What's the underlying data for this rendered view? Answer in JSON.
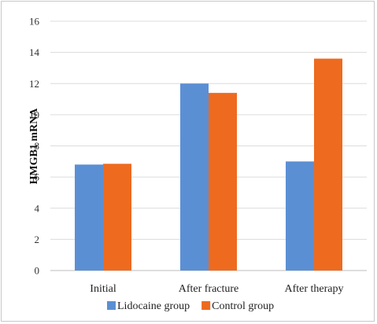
{
  "chart_data": {
    "type": "bar",
    "title": "",
    "xlabel": "",
    "ylabel": "HMGB1 mRNA",
    "ylim": [
      0,
      16
    ],
    "yticks": [
      0,
      2,
      4,
      6,
      8,
      10,
      12,
      14,
      16
    ],
    "grid": true,
    "legend": "bottom",
    "categories": [
      "Initial",
      "After fracture",
      "After therapy"
    ],
    "series": [
      {
        "name": "Lidocaine group",
        "color": "#5b8fd4",
        "values": [
          6.8,
          12.0,
          7.0
        ]
      },
      {
        "name": "Control group",
        "color": "#ee6a1f",
        "values": [
          6.85,
          11.4,
          13.6
        ]
      }
    ]
  }
}
